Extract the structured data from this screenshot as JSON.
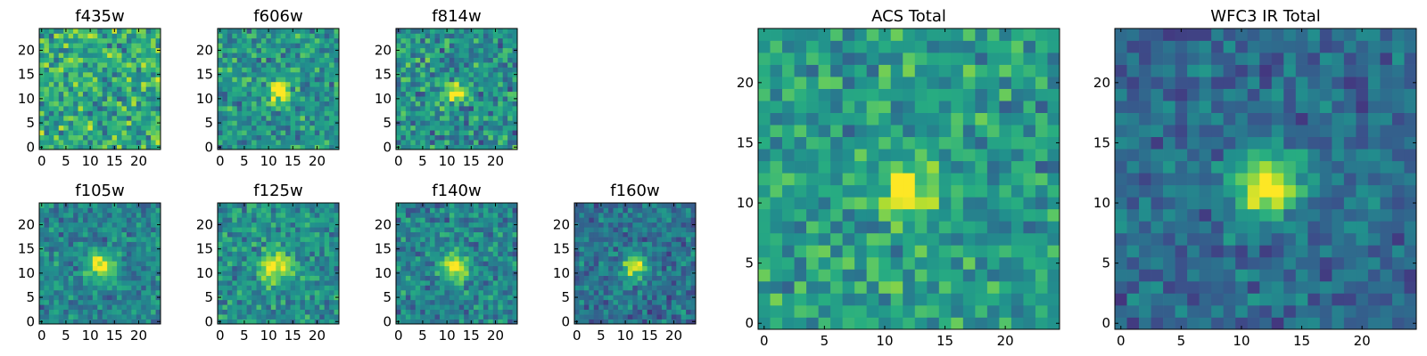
{
  "figure": {
    "description_free": true,
    "colormap": "viridis",
    "colors": [
      "#440154",
      "#3b528b",
      "#21918c",
      "#5ec962",
      "#fde725"
    ]
  },
  "chart_data": [
    {
      "type": "heatmap",
      "title": "f435w",
      "grid_size": 25,
      "xticks": [
        0,
        5,
        10,
        15,
        20
      ],
      "yticks": [
        0,
        5,
        10,
        15,
        20
      ],
      "xlim": [
        -0.5,
        24.5
      ],
      "ylim": [
        -0.5,
        24.5
      ],
      "peak": [
        11.5,
        11
      ],
      "peak_width": 2.5,
      "peak_amp": 0.0,
      "noise": 0.22,
      "base": 0.62,
      "seed": 11
    },
    {
      "type": "heatmap",
      "title": "f606w",
      "grid_size": 25,
      "xticks": [
        0,
        5,
        10,
        15,
        20
      ],
      "yticks": [
        0,
        5,
        10,
        15,
        20
      ],
      "xlim": [
        -0.5,
        24.5
      ],
      "ylim": [
        -0.5,
        24.5
      ],
      "peak": [
        12,
        11.5
      ],
      "peak_width": 1.6,
      "peak_amp": 0.55,
      "noise": 0.18,
      "base": 0.52,
      "seed": 23
    },
    {
      "type": "heatmap",
      "title": "f814w",
      "grid_size": 25,
      "xticks": [
        0,
        5,
        10,
        15,
        20
      ],
      "yticks": [
        0,
        5,
        10,
        15,
        20
      ],
      "xlim": [
        -0.5,
        24.5
      ],
      "ylim": [
        -0.5,
        24.5
      ],
      "peak": [
        12,
        11.5
      ],
      "peak_width": 1.5,
      "peak_amp": 0.55,
      "noise": 0.2,
      "base": 0.5,
      "seed": 37
    },
    {
      "type": "heatmap",
      "title": "f105w",
      "grid_size": 25,
      "xticks": [
        0,
        5,
        10,
        15,
        20
      ],
      "yticks": [
        0,
        5,
        10,
        15,
        20
      ],
      "xlim": [
        -0.5,
        24.5
      ],
      "ylim": [
        -0.5,
        24.5
      ],
      "peak": [
        12,
        11.5
      ],
      "peak_width": 1.9,
      "peak_amp": 0.6,
      "noise": 0.15,
      "base": 0.45,
      "seed": 41
    },
    {
      "type": "heatmap",
      "title": "f125w",
      "grid_size": 25,
      "xticks": [
        0,
        5,
        10,
        15,
        20
      ],
      "yticks": [
        0,
        5,
        10,
        15,
        20
      ],
      "xlim": [
        -0.5,
        24.5
      ],
      "ylim": [
        -0.5,
        24.5
      ],
      "peak": [
        11.5,
        11.5
      ],
      "peak_width": 2.1,
      "peak_amp": 0.55,
      "noise": 0.16,
      "base": 0.5,
      "seed": 53
    },
    {
      "type": "heatmap",
      "title": "f140w",
      "grid_size": 25,
      "xticks": [
        0,
        5,
        10,
        15,
        20
      ],
      "yticks": [
        0,
        5,
        10,
        15,
        20
      ],
      "xlim": [
        -0.5,
        24.5
      ],
      "ylim": [
        -0.5,
        24.5
      ],
      "peak": [
        12,
        11.5
      ],
      "peak_width": 2.0,
      "peak_amp": 0.6,
      "noise": 0.16,
      "base": 0.45,
      "seed": 67
    },
    {
      "type": "heatmap",
      "title": "f160w",
      "grid_size": 25,
      "xticks": [
        0,
        5,
        10,
        15,
        20
      ],
      "yticks": [
        0,
        5,
        10,
        15,
        20
      ],
      "xlim": [
        -0.5,
        24.5
      ],
      "ylim": [
        -0.5,
        24.5
      ],
      "peak": [
        12,
        11.5
      ],
      "peak_width": 1.7,
      "peak_amp": 0.65,
      "noise": 0.15,
      "base": 0.38,
      "seed": 79
    },
    {
      "type": "heatmap",
      "title": "ACS Total",
      "grid_size": 25,
      "xticks": [
        0,
        5,
        10,
        15,
        20
      ],
      "yticks": [
        0,
        5,
        10,
        15,
        20
      ],
      "xlim": [
        -0.5,
        24.5
      ],
      "ylim": [
        -0.5,
        24.5
      ],
      "peak": [
        12,
        11
      ],
      "peak_width": 1.7,
      "peak_amp": 0.5,
      "noise": 0.17,
      "base": 0.55,
      "seed": 97
    },
    {
      "type": "heatmap",
      "title": "WFC3 IR Total",
      "grid_size": 25,
      "xticks": [
        0,
        5,
        10,
        15,
        20
      ],
      "yticks": [
        0,
        5,
        10,
        15,
        20
      ],
      "xlim": [
        -0.5,
        24.5
      ],
      "ylim": [
        -0.5,
        24.5
      ],
      "peak": [
        12,
        11.5
      ],
      "peak_width": 2.0,
      "peak_amp": 0.7,
      "noise": 0.13,
      "base": 0.35,
      "seed": 131
    }
  ]
}
